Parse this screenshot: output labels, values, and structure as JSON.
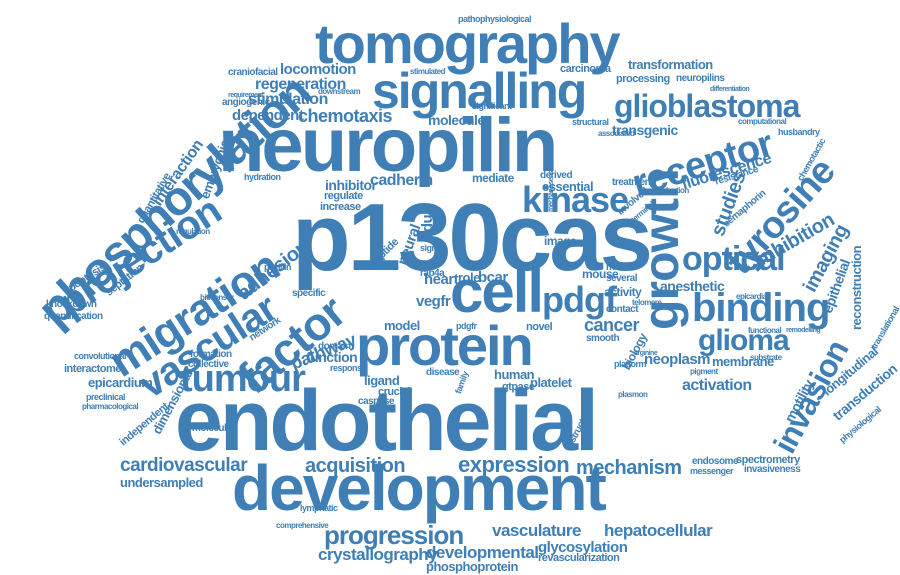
{
  "cloud": {
    "color": "#3f7fb5",
    "background": "#ffffff",
    "words": [
      "endothelial",
      "development",
      "p130cas",
      "neuropilin",
      "tomography",
      "signalling",
      "phosphorylation",
      "migration",
      "projection",
      "glioblastoma",
      "protein",
      "cell",
      "growth",
      "vascular",
      "factor",
      "receptor",
      "tyrosine",
      "binding",
      "kinase",
      "tumour",
      "pdgf",
      "optical",
      "glioma",
      "invasion",
      "progression",
      "expression",
      "mechanism",
      "acquisition",
      "cardiovascular",
      "crystallography",
      "developmental",
      "vasculature",
      "hepatocellular",
      "glycosylation",
      "phosphoprotein",
      "revascularization",
      "chemotaxis",
      "regeneration",
      "stimulation",
      "locomotion",
      "dependent",
      "molecule",
      "cadherin",
      "inhibitor",
      "inhibition",
      "imaging",
      "studies",
      "fluorescence",
      "transgenic",
      "transformation",
      "carcinoma",
      "processing",
      "neuropilins",
      "adhesion",
      "pathway",
      "function",
      "cancer",
      "activation",
      "neoplasm",
      "membrane",
      "anesthetic",
      "activity",
      "epithelial",
      "reconstruction",
      "transduction",
      "longitudinal",
      "motility",
      "human",
      "platelet",
      "ligand",
      "spectrometry",
      "invasiveness",
      "endosome",
      "messenger",
      "undersampled",
      "epicardium",
      "interactome",
      "knockdown",
      "quantification",
      "apoptosis",
      "septation",
      "embryonic",
      "interaction",
      "quantitative",
      "angiogenic",
      "craniofacial",
      "pathophysiological",
      "essential",
      "mediate",
      "derived",
      "heart",
      "bcar",
      "vegfr",
      "model",
      "image",
      "mouse",
      "mutant",
      "several",
      "contact",
      "biology",
      "smooth",
      "gtpase",
      "crucial",
      "caspase",
      "disease",
      "formation",
      "collective",
      "convolutional",
      "preclinical",
      "pharmacological",
      "molecular",
      "independent",
      "dimensional",
      "lymphatic",
      "comprehensive",
      "adult",
      "neural",
      "regulate",
      "increase",
      "peptide",
      "network",
      "specific",
      "domain",
      "response",
      "rab4a",
      "role",
      "novel",
      "pdgfr",
      "family",
      "signal",
      "hydration",
      "paxillin",
      "biosensor",
      "significant",
      "stimulated",
      "downstream",
      "structural",
      "associated",
      "resistance",
      "semaphorin",
      "chemotactic",
      "husbandry",
      "computational",
      "differentiation",
      "translational",
      "physiological",
      "epicardial",
      "telomere",
      "functional",
      "remodelling",
      "substrate",
      "platform",
      "pigment",
      "plasmon",
      "arginine",
      "treatment",
      "production",
      "involved",
      "terminal",
      "structure",
      "regulation",
      "requirement",
      "mechanosensitive",
      "chromatin"
    ]
  }
}
